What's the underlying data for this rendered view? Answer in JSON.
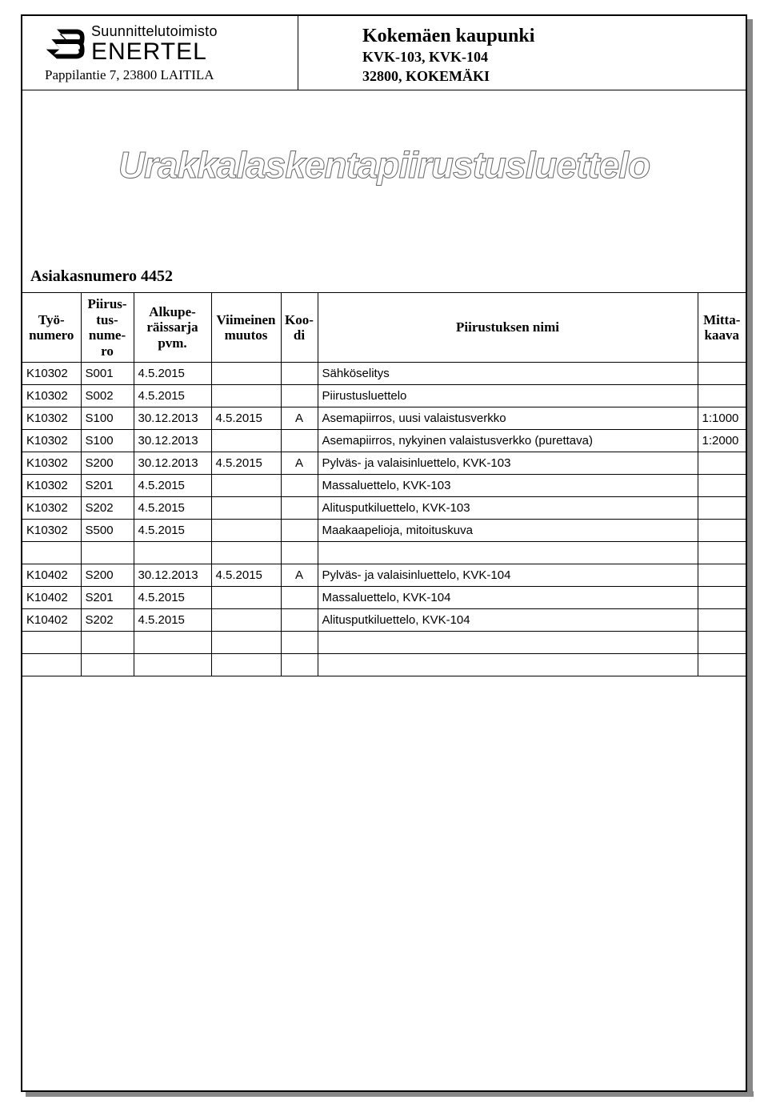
{
  "header": {
    "logo_top": "Suunnittelutoimisto",
    "logo_bottom": "ENERTEL",
    "address": "Pappilantie 7, 23800 LAITILA",
    "client_name": "Kokemäen kaupunki",
    "client_line2": "KVK-103, KVK-104",
    "client_line3": "32800, KOKEMÄKI"
  },
  "wordart_title": "Urakkalaskentapiirustusluettelo",
  "customer_label": "Asiakasnumero 4452",
  "columns": {
    "tyo": "Työ-\nnumero",
    "piir": "Piirus-\ntus-\nnume-\nro",
    "alku": "Alkupe-\nräissarja\npvm.",
    "viim": "Viimeinen\nmuutos",
    "koodi": "Koo-\ndi",
    "nimi": "Piirustuksen nimi",
    "mitta": "Mitta-\nkaava"
  },
  "rows": [
    {
      "tyo": "K10302",
      "piir": "S001",
      "alku": "4.5.2015",
      "viim": "",
      "koodi": "",
      "nimi": "Sähköselitys",
      "mitta": ""
    },
    {
      "tyo": "K10302",
      "piir": "S002",
      "alku": "4.5.2015",
      "viim": "",
      "koodi": "",
      "nimi": "Piirustusluettelo",
      "mitta": ""
    },
    {
      "tyo": "K10302",
      "piir": "S100",
      "alku": "30.12.2013",
      "viim": "4.5.2015",
      "koodi": "A",
      "nimi": "Asemapiirros, uusi valaistusverkko",
      "mitta": "1:1000"
    },
    {
      "tyo": "K10302",
      "piir": "S100",
      "alku": "30.12.2013",
      "viim": "",
      "koodi": "",
      "nimi": "Asemapiirros, nykyinen valaistusverkko (purettava)",
      "mitta": "1:2000"
    },
    {
      "tyo": "K10302",
      "piir": "S200",
      "alku": "30.12.2013",
      "viim": "4.5.2015",
      "koodi": "A",
      "nimi": "Pylväs- ja valaisinluettelo, KVK-103",
      "mitta": ""
    },
    {
      "tyo": "K10302",
      "piir": "S201",
      "alku": "4.5.2015",
      "viim": "",
      "koodi": "",
      "nimi": "Massaluettelo, KVK-103",
      "mitta": ""
    },
    {
      "tyo": "K10302",
      "piir": "S202",
      "alku": "4.5.2015",
      "viim": "",
      "koodi": "",
      "nimi": "Alitusputkiluettelo, KVK-103",
      "mitta": ""
    },
    {
      "tyo": "K10302",
      "piir": "S500",
      "alku": "4.5.2015",
      "viim": "",
      "koodi": "",
      "nimi": "Maakaapelioja, mitoituskuva",
      "mitta": ""
    },
    {
      "tyo": "",
      "piir": "",
      "alku": "",
      "viim": "",
      "koodi": "",
      "nimi": "",
      "mitta": ""
    },
    {
      "tyo": "K10402",
      "piir": "S200",
      "alku": "30.12.2013",
      "viim": "4.5.2015",
      "koodi": "A",
      "nimi": "Pylväs- ja valaisinluettelo, KVK-104",
      "mitta": ""
    },
    {
      "tyo": "K10402",
      "piir": "S201",
      "alku": "4.5.2015",
      "viim": "",
      "koodi": "",
      "nimi": "Massaluettelo, KVK-104",
      "mitta": ""
    },
    {
      "tyo": "K10402",
      "piir": "S202",
      "alku": "4.5.2015",
      "viim": "",
      "koodi": "",
      "nimi": "Alitusputkiluettelo, KVK-104",
      "mitta": ""
    },
    {
      "tyo": "",
      "piir": "",
      "alku": "",
      "viim": "",
      "koodi": "",
      "nimi": "",
      "mitta": ""
    },
    {
      "tyo": "",
      "piir": "",
      "alku": "",
      "viim": "",
      "koodi": "",
      "nimi": "",
      "mitta": ""
    }
  ],
  "colors": {
    "border": "#000000",
    "shadow": "#888888",
    "background": "#ffffff",
    "wordart_stroke": "#666666"
  }
}
